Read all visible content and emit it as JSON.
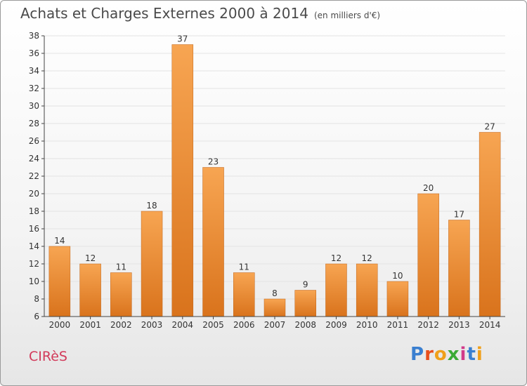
{
  "header": {
    "title": "Achats et Charges Externes 2000 à 2014",
    "subtitle": "(en milliers d'€)"
  },
  "footer": {
    "commune": "CIRèS",
    "logo_letters": [
      "P",
      "r",
      "o",
      "x",
      "i",
      "t",
      "i"
    ],
    "logo_colors": [
      "#3a7fd0",
      "#e84e1b",
      "#f0a01a",
      "#3aaa35",
      "#d23a8a",
      "#3a7fd0",
      "#f0a01a"
    ]
  },
  "colors": {
    "bar_light": "#f7a552",
    "bar_dark": "#d9731c",
    "bar_edge": "#c0651a",
    "grid": "#e3e3e3",
    "axis": "#444444",
    "commune": "#d23a5a"
  },
  "chart_data": {
    "type": "bar",
    "title": "Achats et Charges Externes 2000 à 2014",
    "subtitle": "(en milliers d'€)",
    "xlabel": "",
    "ylabel": "",
    "categories": [
      "2000",
      "2001",
      "2002",
      "2003",
      "2004",
      "2005",
      "2006",
      "2007",
      "2008",
      "2009",
      "2010",
      "2011",
      "2012",
      "2013",
      "2014"
    ],
    "values": [
      14,
      12,
      11,
      18,
      37,
      23,
      11,
      8,
      9,
      12,
      12,
      10,
      20,
      17,
      27
    ],
    "ylim": [
      6,
      38
    ],
    "yticks": [
      6,
      8,
      10,
      12,
      14,
      16,
      18,
      20,
      22,
      24,
      26,
      28,
      30,
      32,
      34,
      36,
      38
    ],
    "grid": true,
    "data_labels": true
  }
}
